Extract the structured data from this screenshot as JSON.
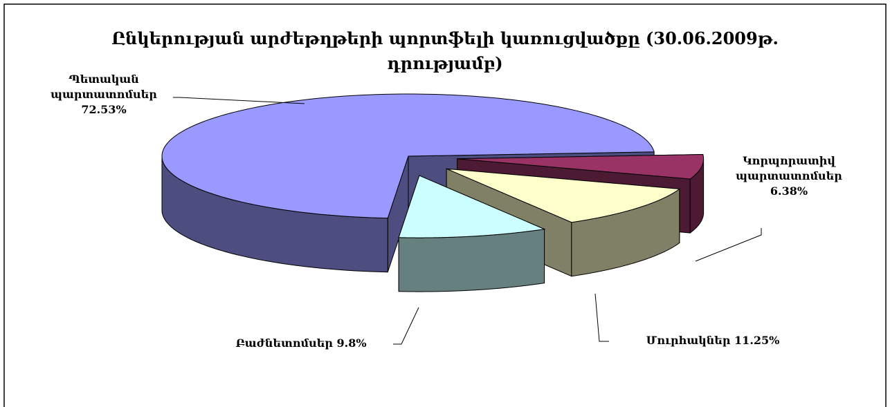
{
  "chart_data": {
    "type": "pie3d",
    "title": "Ընկերության արժեթղթերի պորտֆելի կառուցվածքը (30.06.2009թ. դրությամբ)",
    "categories": [
      "Կորպորատիվ պարտատոմսեր",
      "Մուրհակներ",
      "Բաժնետոմսեր",
      "Պետական պարտատոմսեր"
    ],
    "values": [
      6.38,
      11.25,
      9.8,
      72.53
    ],
    "value_labels": [
      "6.38%",
      "11.25%",
      "9.8%",
      "72.53%"
    ],
    "colors": [
      "#993366",
      "#ffffcc",
      "#ccffff",
      "#9999ff"
    ]
  }
}
